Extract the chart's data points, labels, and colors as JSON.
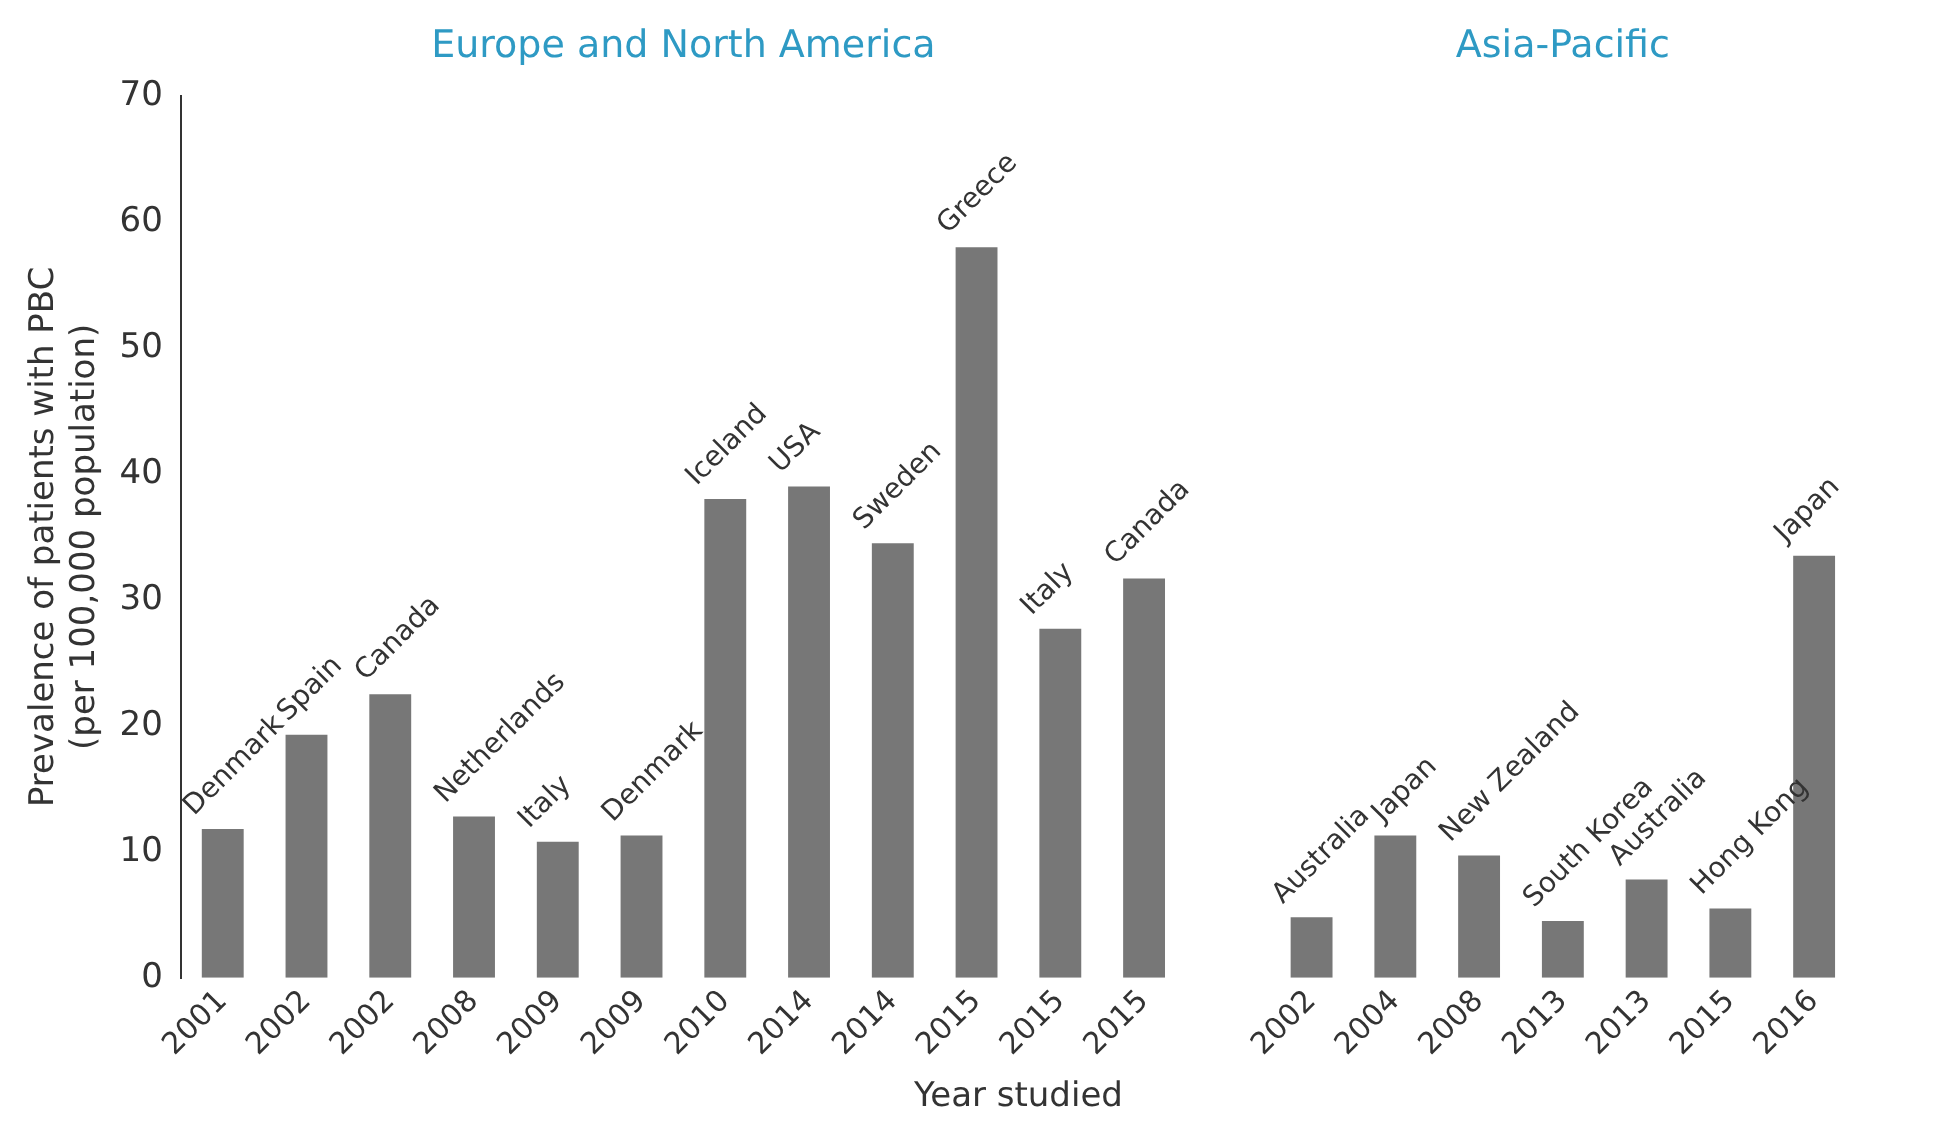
{
  "chart_data": {
    "type": "bar",
    "xlabel": "Year studied",
    "ylabel": "Prevalence of patients with PBC\n(per 100,000 population)",
    "annotations": [
      "Europe and North America",
      "Asia-Pacific"
    ],
    "categories": [
      "2001",
      "2002",
      "2002",
      "2008",
      "2009",
      "2009",
      "2010",
      "2014",
      "2014",
      "2015",
      "2015",
      "2015",
      null,
      "2002",
      "2004",
      "2008",
      "2013",
      "2013",
      "2015",
      "2016"
    ],
    "values": [
      11.8,
      19.3,
      22.5,
      12.8,
      10.8,
      11.3,
      38,
      39,
      34.5,
      58,
      27.7,
      31.7,
      null,
      4.8,
      11.3,
      9.7,
      4.5,
      7.8,
      5.5,
      33.5
    ],
    "value_labels": [
      "Denmark",
      "Spain",
      "Canada",
      "Netherlands",
      "Italy",
      "Denmark",
      "Iceland",
      "USA",
      "Sweden",
      "Greece",
      "Italy",
      "Canada",
      null,
      "Australia",
      "Japan",
      "New Zealand",
      "South Korea",
      "Australia",
      "Hong Kong",
      "Japan"
    ],
    "color": "#777777",
    "ylim": [
      0,
      70
    ],
    "yticks": [
      0,
      10,
      20,
      30,
      40,
      50,
      60,
      70
    ],
    "grid": false,
    "legend": false
  }
}
